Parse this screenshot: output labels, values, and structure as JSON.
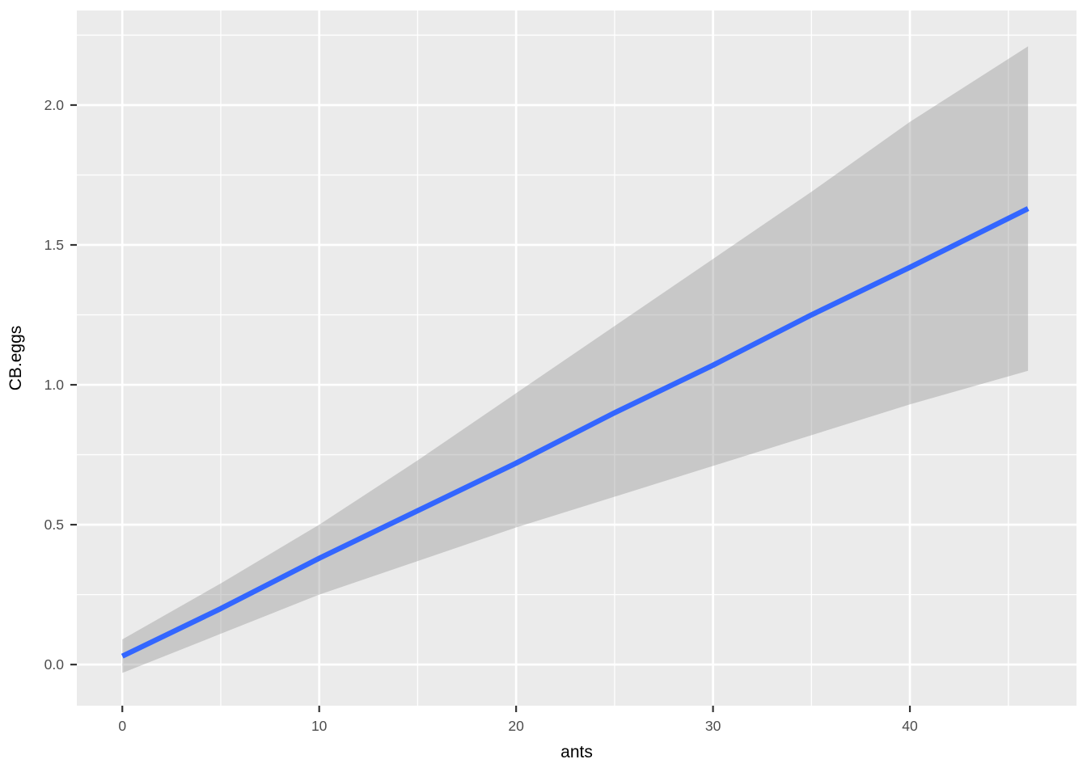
{
  "chart_data": {
    "type": "line",
    "title": "",
    "xlabel": "ants",
    "ylabel": "CB.eggs",
    "xlim": [
      -2.31,
      48.46
    ],
    "ylim": [
      -0.147,
      2.338
    ],
    "grid": "on",
    "legend": "none",
    "x_ticks": [
      {
        "v": 0,
        "label": "0"
      },
      {
        "v": 10,
        "label": "10"
      },
      {
        "v": 20,
        "label": "20"
      },
      {
        "v": 30,
        "label": "30"
      },
      {
        "v": 40,
        "label": "40"
      }
    ],
    "y_ticks": [
      {
        "v": 0.0,
        "label": "0.0"
      },
      {
        "v": 0.5,
        "label": "0.5"
      },
      {
        "v": 1.0,
        "label": "1.0"
      },
      {
        "v": 1.5,
        "label": "1.5"
      },
      {
        "v": 2.0,
        "label": "2.0"
      }
    ],
    "x_minor": [
      5,
      15,
      25,
      35,
      45
    ],
    "y_minor": [
      0.25,
      0.75,
      1.25,
      1.75,
      2.25
    ],
    "series": [
      {
        "name": "fitted-line",
        "x": [
          0,
          5,
          10,
          15,
          20,
          25,
          30,
          35,
          40,
          46
        ],
        "y": [
          0.03,
          0.2,
          0.38,
          0.55,
          0.72,
          0.9,
          1.07,
          1.25,
          1.42,
          1.63
        ]
      }
    ],
    "ribbon": {
      "name": "confidence-interval",
      "x": [
        0,
        5,
        10,
        15,
        20,
        25,
        30,
        35,
        40,
        46
      ],
      "upper": [
        0.09,
        0.29,
        0.5,
        0.73,
        0.97,
        1.21,
        1.45,
        1.69,
        1.94,
        2.21
      ],
      "lower": [
        -0.03,
        0.11,
        0.25,
        0.37,
        0.49,
        0.6,
        0.71,
        0.82,
        0.93,
        1.05
      ]
    },
    "colors": {
      "panel_bg": "#EBEBEB",
      "grid": "#FFFFFF",
      "ribbon_fill": "#999999",
      "ribbon_alpha": 0.42,
      "line": "#3366FF",
      "tick_mark": "#333333",
      "tick_label": "#4D4D4D",
      "axis_title": "#000000",
      "figure_bg": "#FFFFFF"
    }
  }
}
